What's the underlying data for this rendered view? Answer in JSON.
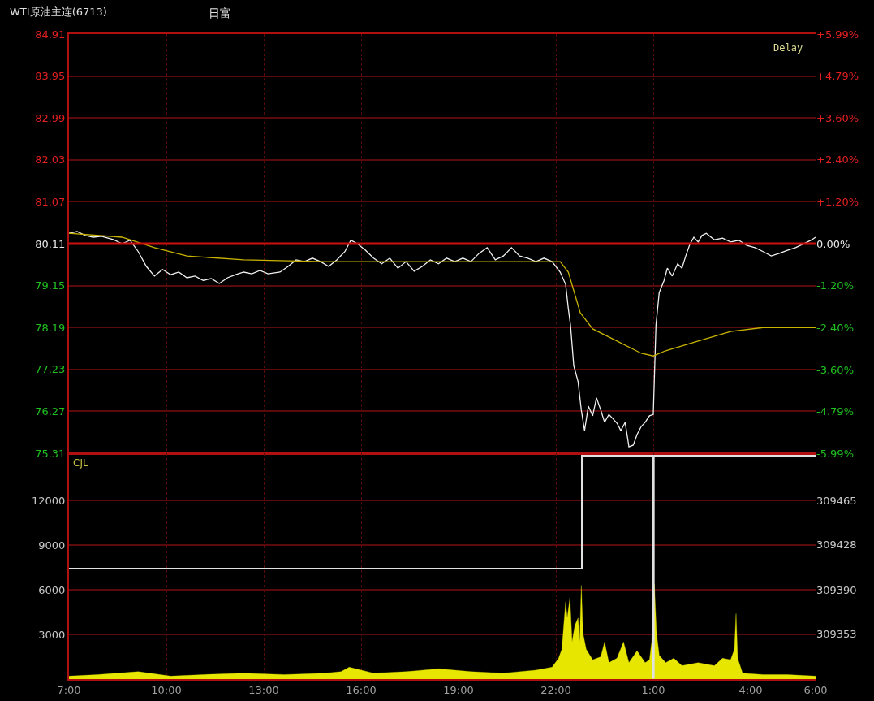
{
  "chart_data": [
    {
      "type": "line",
      "title": "WTI原油主连(6713)",
      "annotations": [
        "日富",
        "Delay"
      ],
      "xlim": [
        "--01-01T07:00",
        "--01-02T06:00"
      ],
      "xticks": [
        {
          "value": "--01-01T07:00",
          "label": "7:00"
        },
        {
          "value": "--01-01T10:00",
          "label": "10:00"
        },
        {
          "value": "--01-01T13:00",
          "label": "13:00"
        },
        {
          "value": "--01-01T16:00",
          "label": "16:00"
        },
        {
          "value": "--01-01T19:00",
          "label": "19:00"
        },
        {
          "value": "--01-01T22:00",
          "label": "22:00"
        },
        {
          "value": "--01-02T01:00",
          "label": "1:00"
        },
        {
          "value": "--01-02T04:00",
          "label": "4:00"
        },
        {
          "value": "--01-02T06:00",
          "label": "6:00"
        }
      ],
      "ylim": [
        75.31,
        84.91
      ],
      "yticks": [
        75.31,
        76.27,
        77.23,
        78.19,
        79.15,
        80.11,
        81.07,
        82.03,
        82.99,
        83.95,
        84.91
      ],
      "y2lim": [
        -5.99,
        5.99
      ],
      "y2ticks": [
        {
          "value": -5.99,
          "label": "-5.99%"
        },
        {
          "value": -4.79,
          "label": "-4.79%"
        },
        {
          "value": -3.6,
          "label": "-3.60%"
        },
        {
          "value": -2.4,
          "label": "-2.40%"
        },
        {
          "value": -1.2,
          "label": "-1.20%"
        },
        {
          "value": 0,
          "label": "0.00%"
        },
        {
          "value": 1.2,
          "label": "+1.20%"
        },
        {
          "value": 2.4,
          "label": "+2.40%"
        },
        {
          "value": 3.6,
          "label": "+3.60%"
        },
        {
          "value": 4.79,
          "label": "+4.79%"
        },
        {
          "value": 5.99,
          "label": "+5.99%"
        }
      ],
      "series": [
        {
          "color": "#f0f0f0",
          "x": [
            "--01-01T07:00",
            "--01-01T07:15",
            "--01-01T07:30",
            "--01-01T07:45",
            "--01-01T08:00",
            "--01-01T08:23",
            "--01-01T08:38",
            "--01-01T08:53",
            "--01-01T09:08",
            "--01-01T09:23",
            "--01-01T09:38",
            "--01-01T09:53",
            "--01-01T10:08",
            "--01-01T10:23",
            "--01-01T10:38",
            "--01-01T10:53",
            "--01-01T11:08",
            "--01-01T11:23",
            "--01-01T11:38",
            "--01-01T11:53",
            "--01-01T12:08",
            "--01-01T12:23",
            "--01-01T12:38",
            "--01-01T12:53",
            "--01-01T13:08",
            "--01-01T13:30",
            "--01-01T13:45",
            "--01-01T14:00",
            "--01-01T14:15",
            "--01-01T14:30",
            "--01-01T14:45",
            "--01-01T15:00",
            "--01-01T15:15",
            "--01-01T15:30",
            "--01-01T15:41",
            "--01-01T15:53",
            "--01-01T16:08",
            "--01-01T16:23",
            "--01-01T16:38",
            "--01-01T16:53",
            "--01-01T17:08",
            "--01-01T17:23",
            "--01-01T17:38",
            "--01-01T17:53",
            "--01-01T18:08",
            "--01-01T18:23",
            "--01-01T18:38",
            "--01-01T18:53",
            "--01-01T19:08",
            "--01-01T19:23",
            "--01-01T19:38",
            "--01-01T19:53",
            "--01-01T20:08",
            "--01-01T20:23",
            "--01-01T20:38",
            "--01-01T20:53",
            "--01-01T21:08",
            "--01-01T21:23",
            "--01-01T21:38",
            "--01-01T21:53",
            "--01-01T22:08",
            "--01-01T22:18",
            "--01-01T22:23",
            "--01-01T22:27",
            "--01-01T22:33",
            "--01-01T22:41",
            "--01-01T22:47",
            "--01-01T22:53",
            "--01-01T23:00",
            "--01-01T23:08",
            "--01-01T23:15",
            "--01-01T23:23",
            "--01-01T23:30",
            "--01-01T23:38",
            "--01-01T23:45",
            "--01-01T23:53",
            "--01-02T00:00",
            "--01-02T00:08",
            "--01-02T00:15",
            "--01-02T00:23",
            "--01-02T00:30",
            "--01-02T00:38",
            "--01-02T00:45",
            "--01-02T00:53",
            "--01-02T01:00",
            "--01-02T01:05",
            "--01-02T01:11",
            "--01-02T01:20",
            "--01-02T01:26",
            "--01-02T01:35",
            "--01-02T01:45",
            "--01-02T01:53",
            "--01-02T02:00",
            "--01-02T02:08",
            "--01-02T02:15",
            "--01-02T02:23",
            "--01-02T02:30",
            "--01-02T02:38",
            "--01-02T02:53",
            "--01-02T03:08",
            "--01-02T03:23",
            "--01-02T03:38",
            "--01-02T03:53",
            "--01-02T04:08",
            "--01-02T04:23",
            "--01-02T04:38",
            "--01-02T04:53",
            "--01-02T05:08",
            "--01-02T05:23",
            "--01-02T05:38",
            "--01-02T05:53",
            "--01-02T06:00"
          ],
          "values": [
            80.35,
            80.39,
            80.3,
            80.26,
            80.28,
            80.2,
            80.11,
            80.19,
            79.93,
            79.59,
            79.37,
            79.52,
            79.4,
            79.46,
            79.33,
            79.37,
            79.27,
            79.31,
            79.2,
            79.33,
            79.4,
            79.46,
            79.42,
            79.5,
            79.42,
            79.46,
            79.59,
            79.74,
            79.7,
            79.78,
            79.7,
            79.59,
            79.74,
            79.93,
            80.19,
            80.11,
            79.96,
            79.78,
            79.65,
            79.78,
            79.55,
            79.7,
            79.48,
            79.59,
            79.74,
            79.65,
            79.78,
            79.7,
            79.78,
            79.7,
            79.89,
            80.02,
            79.74,
            79.83,
            80.02,
            79.83,
            79.78,
            79.7,
            79.78,
            79.7,
            79.46,
            79.18,
            78.62,
            78.25,
            77.32,
            76.95,
            76.3,
            75.83,
            76.39,
            76.17,
            76.58,
            76.3,
            76.02,
            76.2,
            76.11,
            76.0,
            75.83,
            76.02,
            75.46,
            75.5,
            75.74,
            75.93,
            76.02,
            76.17,
            76.2,
            78.25,
            78.99,
            79.27,
            79.55,
            79.37,
            79.65,
            79.55,
            79.83,
            80.11,
            80.26,
            80.15,
            80.3,
            80.35,
            80.2,
            80.24,
            80.15,
            80.19,
            80.07,
            80.02,
            79.93,
            79.83,
            79.89,
            79.96,
            80.02,
            80.11,
            80.2,
            80.26
          ]
        },
        {
          "color": "#c8b400",
          "x": [
            "--01-01T07:00",
            "--01-01T08:38",
            "--01-01T09:38",
            "--01-01T10:38",
            "--01-01T12:23",
            "--01-01T14:53",
            "--01-01T17:23",
            "--01-01T19:53",
            "--01-01T22:08",
            "--01-01T22:23",
            "--01-01T22:45",
            "--01-01T23:08",
            "--01-01T23:53",
            "--01-02T00:38",
            "--01-02T01:00",
            "--01-02T01:23",
            "--01-02T02:23",
            "--01-02T03:23",
            "--01-02T04:23",
            "--01-02T06:00"
          ],
          "values": [
            80.35,
            80.26,
            80.02,
            79.83,
            79.74,
            79.7,
            79.7,
            79.7,
            79.7,
            79.46,
            78.53,
            78.16,
            77.88,
            77.6,
            77.54,
            77.66,
            77.88,
            78.1,
            78.19,
            78.19
          ]
        }
      ],
      "ref_lines": [
        {
          "axis": "y",
          "value": 80.11,
          "color": "#cc1010"
        }
      ],
      "grid": true,
      "tick_labels": "y",
      "marker": "none",
      "line_style": "solid"
    },
    {
      "type": "area",
      "annotations": [
        "CJL"
      ],
      "xlim": [
        "--01-01T07:00",
        "--01-02T06:00"
      ],
      "xticks": [
        {
          "value": "--01-01T07:00",
          "label": "7:00"
        },
        {
          "value": "--01-01T10:00",
          "label": "10:00"
        },
        {
          "value": "--01-01T13:00",
          "label": "13:00"
        },
        {
          "value": "--01-01T16:00",
          "label": "16:00"
        },
        {
          "value": "--01-01T19:00",
          "label": "19:00"
        },
        {
          "value": "--01-01T22:00",
          "label": "22:00"
        },
        {
          "value": "--01-02T01:00",
          "label": "1:00"
        },
        {
          "value": "--01-02T04:00",
          "label": "4:00"
        },
        {
          "value": "--01-02T06:00",
          "label": "6:00"
        }
      ],
      "ylim": [
        0,
        15160
      ],
      "yticks": [
        3000,
        6000,
        9000,
        12000
      ],
      "y2lim": [
        309315,
        309505
      ],
      "y2ticks": [
        309353,
        309390,
        309428,
        309465
      ],
      "series": [
        {
          "color": "#e6e600",
          "x": [
            "--01-01T07:00",
            "--01-01T07:53",
            "--01-01T09:08",
            "--01-01T10:08",
            "--01-01T11:08",
            "--01-01T12:23",
            "--01-01T13:38",
            "--01-01T14:53",
            "--01-01T15:23",
            "--01-01T15:38",
            "--01-01T16:23",
            "--01-01T17:23",
            "--01-01T18:23",
            "--01-01T19:23",
            "--01-01T20:23",
            "--01-01T21:23",
            "--01-01T21:53",
            "--01-01T22:05",
            "--01-01T22:11",
            "--01-01T22:18",
            "--01-01T22:21",
            "--01-01T22:26",
            "--01-01T22:30",
            "--01-01T22:35",
            "--01-01T22:41",
            "--01-01T22:44",
            "--01-01T22:47",
            "--01-01T22:50",
            "--01-01T22:56",
            "--01-01T23:08",
            "--01-01T23:23",
            "--01-01T23:30",
            "--01-01T23:38",
            "--01-01T23:53",
            "--01-02T00:05",
            "--01-02T00:15",
            "--01-02T00:30",
            "--01-02T00:45",
            "--01-02T00:53",
            "--01-02T00:57",
            "--01-02T01:02",
            "--01-02T01:06",
            "--01-02T01:11",
            "--01-02T01:23",
            "--01-02T01:38",
            "--01-02T01:53",
            "--01-02T02:23",
            "--01-02T02:53",
            "--01-02T03:08",
            "--01-02T03:23",
            "--01-02T03:30",
            "--01-02T03:33",
            "--01-02T03:36",
            "--01-02T03:45",
            "--01-02T04:23",
            "--01-02T05:08",
            "--01-02T06:00"
          ],
          "values": [
            200,
            300,
            500,
            200,
            300,
            400,
            300,
            400,
            500,
            800,
            400,
            500,
            700,
            500,
            400,
            600,
            800,
            1400,
            2000,
            5200,
            4100,
            5500,
            2500,
            3600,
            4100,
            2500,
            6300,
            3100,
            2000,
            1300,
            1500,
            2500,
            1100,
            1400,
            2500,
            1100,
            1900,
            1100,
            1300,
            2500,
            6400,
            3100,
            1600,
            1100,
            1400,
            900,
            1100,
            900,
            1400,
            1300,
            2000,
            4400,
            1400,
            400,
            300,
            300,
            200
          ]
        },
        {
          "type": "step",
          "axis": "y2",
          "color": "#e0e0e0",
          "x": [
            "--01-01T07:00",
            "--01-01T22:48",
            "--01-02T01:00",
            "--01-02T01:01",
            "--01-02T06:00"
          ],
          "values": [
            309408,
            309503,
            309316,
            309503,
            309503
          ]
        }
      ],
      "grid": true,
      "marker": "none",
      "line_style": "solid"
    }
  ]
}
